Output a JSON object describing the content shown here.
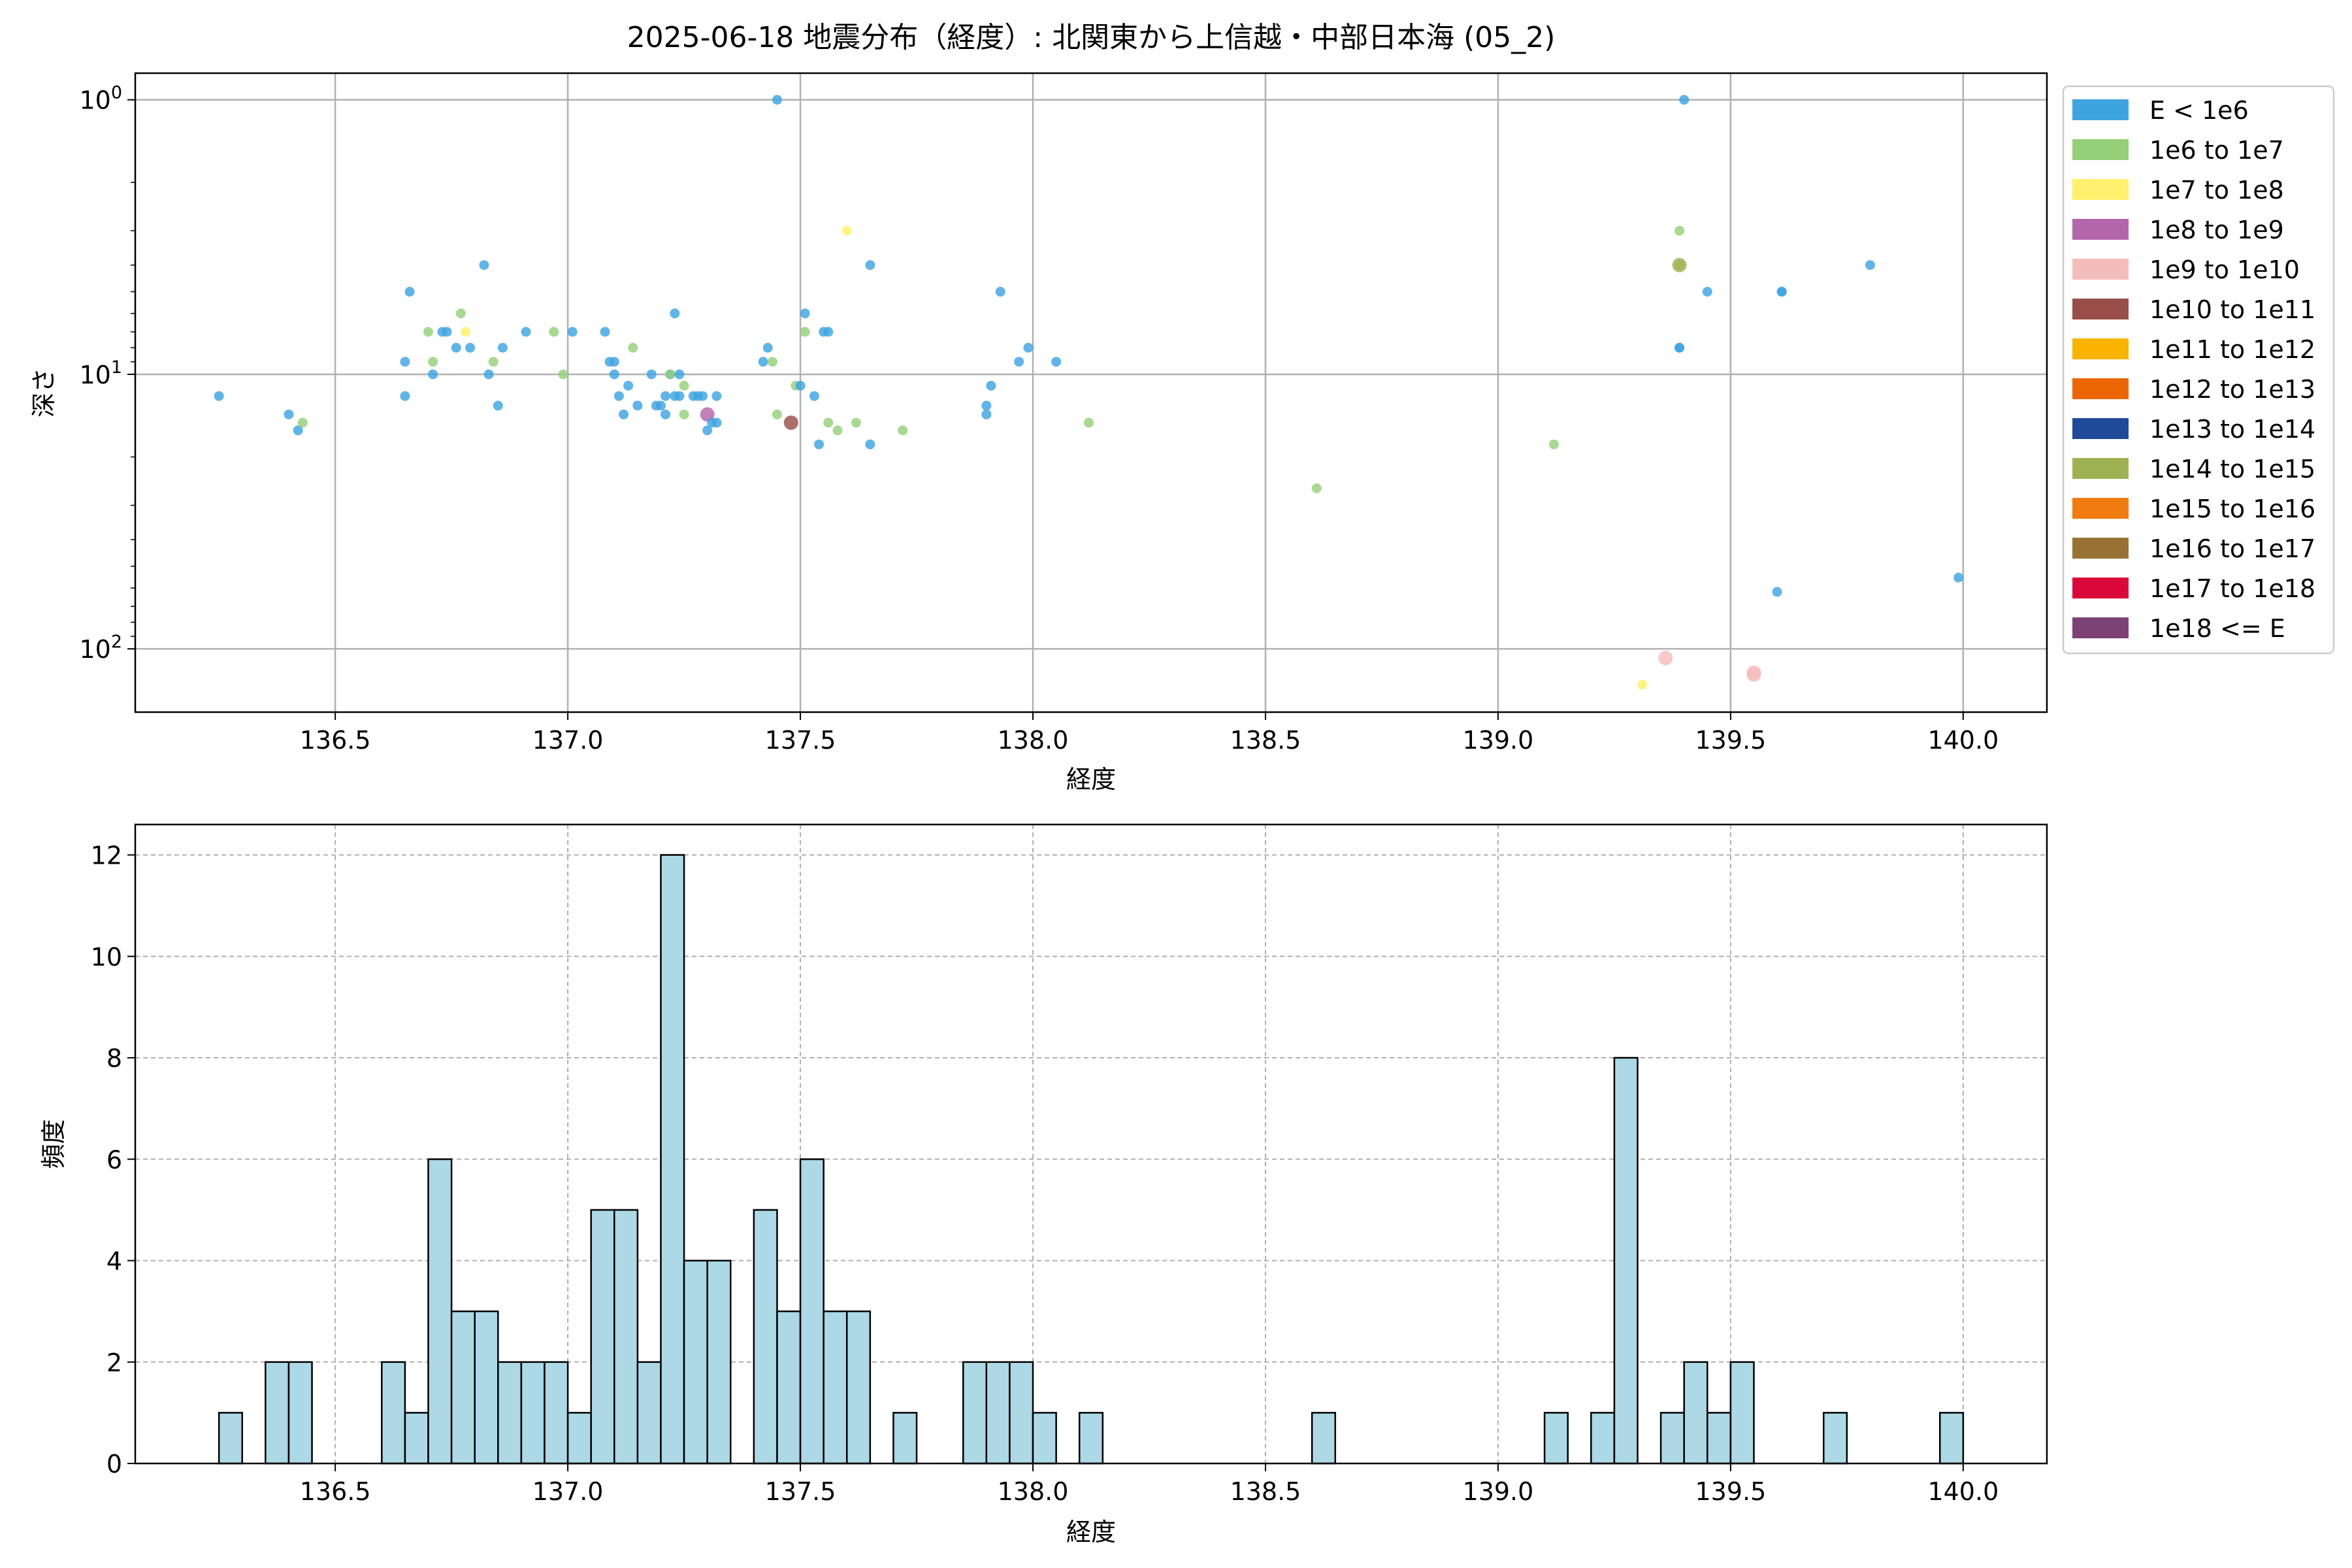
{
  "title": "2025-06-18 地震分布（経度）: 北関東から上信越・中部日本海 (05_2)",
  "legend_placement": "outside-right",
  "chart_data": [
    {
      "type": "scatter",
      "xlabel": "経度",
      "ylabel": "深さ",
      "xlim": [
        136.07,
        140.18
      ],
      "ylim": [
        170,
        0.8
      ],
      "y_scale": "log",
      "y_inverted": true,
      "grid": true,
      "x_ticks": [
        "136.5",
        "137.0",
        "137.5",
        "138.0",
        "138.5",
        "139.0",
        "139.5",
        "140.0"
      ],
      "y_ticks": [
        {
          "value": 1,
          "base": "10",
          "exp": "0"
        },
        {
          "value": 10,
          "base": "10",
          "exp": "1"
        },
        {
          "value": 100,
          "base": "10",
          "exp": "2"
        }
      ],
      "legend": [
        {
          "label": "E < 1e6",
          "color": "#3ea4e0"
        },
        {
          "label": "1e6 to 1e7",
          "color": "#96cf7a"
        },
        {
          "label": "1e7 to 1e8",
          "color": "#fff06e"
        },
        {
          "label": "1e8 to 1e9",
          "color": "#b466aa"
        },
        {
          "label": "1e9 to 1e10",
          "color": "#f5bcbc"
        },
        {
          "label": "1e10 to 1e11",
          "color": "#9a4e4a"
        },
        {
          "label": "1e11 to 1e12",
          "color": "#f8b400"
        },
        {
          "label": "1e12 to 1e13",
          "color": "#ec6605"
        },
        {
          "label": "1e13 to 1e14",
          "color": "#1f4a99"
        },
        {
          "label": "1e14 to 1e15",
          "color": "#9eb153"
        },
        {
          "label": "1e15 to 1e16",
          "color": "#f07b10"
        },
        {
          "label": "1e16 to 1e17",
          "color": "#977234"
        },
        {
          "label": "1e17 to 1e18",
          "color": "#dc0739"
        },
        {
          "label": "1e18 <= E",
          "color": "#7c4276"
        }
      ],
      "points": [
        {
          "x": 136.25,
          "y": 12,
          "c": 0
        },
        {
          "x": 136.4,
          "y": 14,
          "c": 0
        },
        {
          "x": 136.42,
          "y": 16,
          "c": 0
        },
        {
          "x": 136.43,
          "y": 15,
          "c": 1
        },
        {
          "x": 136.65,
          "y": 9,
          "c": 0
        },
        {
          "x": 136.65,
          "y": 12,
          "c": 0
        },
        {
          "x": 136.66,
          "y": 5,
          "c": 0
        },
        {
          "x": 136.7,
          "y": 7,
          "c": 1
        },
        {
          "x": 136.71,
          "y": 9,
          "c": 1
        },
        {
          "x": 136.71,
          "y": 10,
          "c": 0
        },
        {
          "x": 136.73,
          "y": 7,
          "c": 0
        },
        {
          "x": 136.74,
          "y": 7,
          "c": 0
        },
        {
          "x": 136.76,
          "y": 8,
          "c": 0
        },
        {
          "x": 136.77,
          "y": 6,
          "c": 1
        },
        {
          "x": 136.78,
          "y": 7,
          "c": 2
        },
        {
          "x": 136.79,
          "y": 8,
          "c": 0
        },
        {
          "x": 136.82,
          "y": 4,
          "c": 0
        },
        {
          "x": 136.83,
          "y": 10,
          "c": 0
        },
        {
          "x": 136.84,
          "y": 9,
          "c": 1
        },
        {
          "x": 136.85,
          "y": 13,
          "c": 0
        },
        {
          "x": 136.86,
          "y": 8,
          "c": 0
        },
        {
          "x": 136.91,
          "y": 7,
          "c": 0
        },
        {
          "x": 136.97,
          "y": 7,
          "c": 1
        },
        {
          "x": 136.99,
          "y": 10,
          "c": 1
        },
        {
          "x": 137.01,
          "y": 7,
          "c": 0
        },
        {
          "x": 137.08,
          "y": 7,
          "c": 0
        },
        {
          "x": 137.09,
          "y": 9,
          "c": 0
        },
        {
          "x": 137.1,
          "y": 10,
          "c": 0
        },
        {
          "x": 137.1,
          "y": 9,
          "c": 0
        },
        {
          "x": 137.11,
          "y": 12,
          "c": 0
        },
        {
          "x": 137.12,
          "y": 14,
          "c": 0
        },
        {
          "x": 137.13,
          "y": 11,
          "c": 0
        },
        {
          "x": 137.14,
          "y": 8,
          "c": 1
        },
        {
          "x": 137.15,
          "y": 13,
          "c": 0
        },
        {
          "x": 137.18,
          "y": 10,
          "c": 0
        },
        {
          "x": 137.19,
          "y": 13,
          "c": 0
        },
        {
          "x": 137.2,
          "y": 13,
          "c": 0
        },
        {
          "x": 137.21,
          "y": 12,
          "c": 0
        },
        {
          "x": 137.21,
          "y": 14,
          "c": 0
        },
        {
          "x": 137.22,
          "y": 10,
          "c": 0
        },
        {
          "x": 137.22,
          "y": 10,
          "c": 1
        },
        {
          "x": 137.23,
          "y": 6,
          "c": 0
        },
        {
          "x": 137.23,
          "y": 12,
          "c": 0
        },
        {
          "x": 137.24,
          "y": 10,
          "c": 0
        },
        {
          "x": 137.24,
          "y": 12,
          "c": 0
        },
        {
          "x": 137.25,
          "y": 11,
          "c": 1
        },
        {
          "x": 137.25,
          "y": 14,
          "c": 1
        },
        {
          "x": 137.27,
          "y": 12,
          "c": 0
        },
        {
          "x": 137.28,
          "y": 12,
          "c": 0
        },
        {
          "x": 137.29,
          "y": 12,
          "c": 0
        },
        {
          "x": 137.3,
          "y": 16,
          "c": 0
        },
        {
          "x": 137.3,
          "y": 14,
          "c": 3
        },
        {
          "x": 137.31,
          "y": 15,
          "c": 0
        },
        {
          "x": 137.32,
          "y": 15,
          "c": 0
        },
        {
          "x": 137.32,
          "y": 12,
          "c": 0
        },
        {
          "x": 137.42,
          "y": 9,
          "c": 0
        },
        {
          "x": 137.43,
          "y": 8,
          "c": 0
        },
        {
          "x": 137.44,
          "y": 9,
          "c": 1
        },
        {
          "x": 137.45,
          "y": 14,
          "c": 1
        },
        {
          "x": 137.45,
          "y": 1,
          "c": 0
        },
        {
          "x": 137.48,
          "y": 15,
          "c": 5
        },
        {
          "x": 137.49,
          "y": 11,
          "c": 1
        },
        {
          "x": 137.5,
          "y": 11,
          "c": 0
        },
        {
          "x": 137.51,
          "y": 7,
          "c": 1
        },
        {
          "x": 137.51,
          "y": 6,
          "c": 0
        },
        {
          "x": 137.53,
          "y": 12,
          "c": 0
        },
        {
          "x": 137.54,
          "y": 18,
          "c": 0
        },
        {
          "x": 137.55,
          "y": 7,
          "c": 0
        },
        {
          "x": 137.56,
          "y": 7,
          "c": 0
        },
        {
          "x": 137.56,
          "y": 15,
          "c": 1
        },
        {
          "x": 137.58,
          "y": 16,
          "c": 1
        },
        {
          "x": 137.6,
          "y": 3,
          "c": 2
        },
        {
          "x": 137.62,
          "y": 15,
          "c": 1
        },
        {
          "x": 137.65,
          "y": 4,
          "c": 0
        },
        {
          "x": 137.65,
          "y": 18,
          "c": 0
        },
        {
          "x": 137.72,
          "y": 16,
          "c": 1
        },
        {
          "x": 137.9,
          "y": 13,
          "c": 0
        },
        {
          "x": 137.9,
          "y": 14,
          "c": 0
        },
        {
          "x": 137.91,
          "y": 11,
          "c": 0
        },
        {
          "x": 137.93,
          "y": 5,
          "c": 0
        },
        {
          "x": 137.97,
          "y": 9,
          "c": 0
        },
        {
          "x": 137.99,
          "y": 8,
          "c": 0
        },
        {
          "x": 138.05,
          "y": 9,
          "c": 0
        },
        {
          "x": 138.12,
          "y": 15,
          "c": 1
        },
        {
          "x": 138.61,
          "y": 26,
          "c": 1
        },
        {
          "x": 139.12,
          "y": 18,
          "c": 1
        },
        {
          "x": 139.31,
          "y": 135,
          "c": 2
        },
        {
          "x": 139.36,
          "y": 108,
          "c": 4
        },
        {
          "x": 139.39,
          "y": 8,
          "c": 0
        },
        {
          "x": 139.39,
          "y": 8,
          "c": 0
        },
        {
          "x": 139.39,
          "y": 3,
          "c": 1
        },
        {
          "x": 139.39,
          "y": 4,
          "c": 1
        },
        {
          "x": 139.39,
          "y": 4,
          "c": 9
        },
        {
          "x": 139.4,
          "y": 1,
          "c": 0
        },
        {
          "x": 139.45,
          "y": 5,
          "c": 0
        },
        {
          "x": 139.55,
          "y": 122,
          "c": 4
        },
        {
          "x": 139.55,
          "y": 124,
          "c": 4
        },
        {
          "x": 139.6,
          "y": 62,
          "c": 0
        },
        {
          "x": 139.61,
          "y": 5,
          "c": 0
        },
        {
          "x": 139.61,
          "y": 5,
          "c": 0
        },
        {
          "x": 139.8,
          "y": 4,
          "c": 0
        },
        {
          "x": 139.99,
          "y": 55,
          "c": 0
        }
      ]
    },
    {
      "type": "bar",
      "xlabel": "経度",
      "ylabel": "頻度",
      "xlim": [
        136.07,
        140.18
      ],
      "ylim": [
        0,
        12.6
      ],
      "grid": true,
      "bar_color": "#add8e6",
      "bin_start": 136.25,
      "bin_width": 0.05,
      "x_ticks": [
        "136.5",
        "137.0",
        "137.5",
        "138.0",
        "138.5",
        "139.0",
        "139.5",
        "140.0"
      ],
      "y_ticks": [
        "0",
        "2",
        "4",
        "6",
        "8",
        "10",
        "12"
      ],
      "values": [
        1,
        0,
        2,
        2,
        0,
        0,
        0,
        2,
        1,
        6,
        3,
        3,
        2,
        2,
        2,
        1,
        5,
        5,
        2,
        12,
        4,
        4,
        0,
        5,
        3,
        6,
        3,
        3,
        0,
        1,
        0,
        0,
        2,
        2,
        2,
        1,
        0,
        1,
        0,
        0,
        0,
        0,
        0,
        0,
        0,
        0,
        0,
        1,
        0,
        0,
        0,
        0,
        0,
        0,
        0,
        0,
        0,
        1,
        0,
        1,
        8,
        0,
        1,
        2,
        1,
        2,
        0,
        0,
        0,
        1,
        0,
        0,
        0,
        0,
        1
      ]
    }
  ]
}
